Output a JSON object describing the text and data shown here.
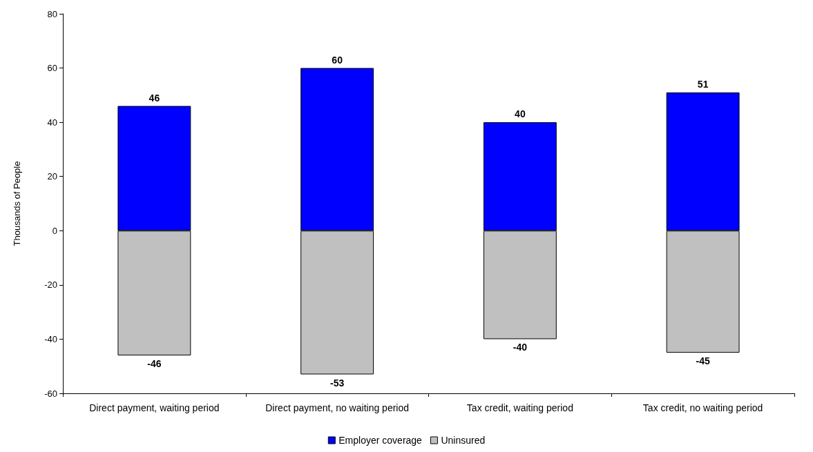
{
  "chart_data": {
    "type": "bar",
    "ylabel": "Thousands of People",
    "categories": [
      "Direct payment, waiting period",
      "Direct payment, no waiting period",
      "Tax credit, waiting period",
      "Tax credit, no waiting period"
    ],
    "series": [
      {
        "name": "Employer coverage",
        "color": "#0000ff",
        "values": [
          46,
          60,
          40,
          51
        ]
      },
      {
        "name": "Uninsured",
        "color": "#c0c0c0",
        "values": [
          -46,
          -53,
          -40,
          -45
        ]
      }
    ],
    "stacked": true,
    "ylim": [
      -60,
      80
    ],
    "yticks": [
      -60,
      -40,
      -20,
      0,
      20,
      40,
      60,
      80
    ],
    "grid": false,
    "legend": "bottom",
    "data_labels": true
  }
}
